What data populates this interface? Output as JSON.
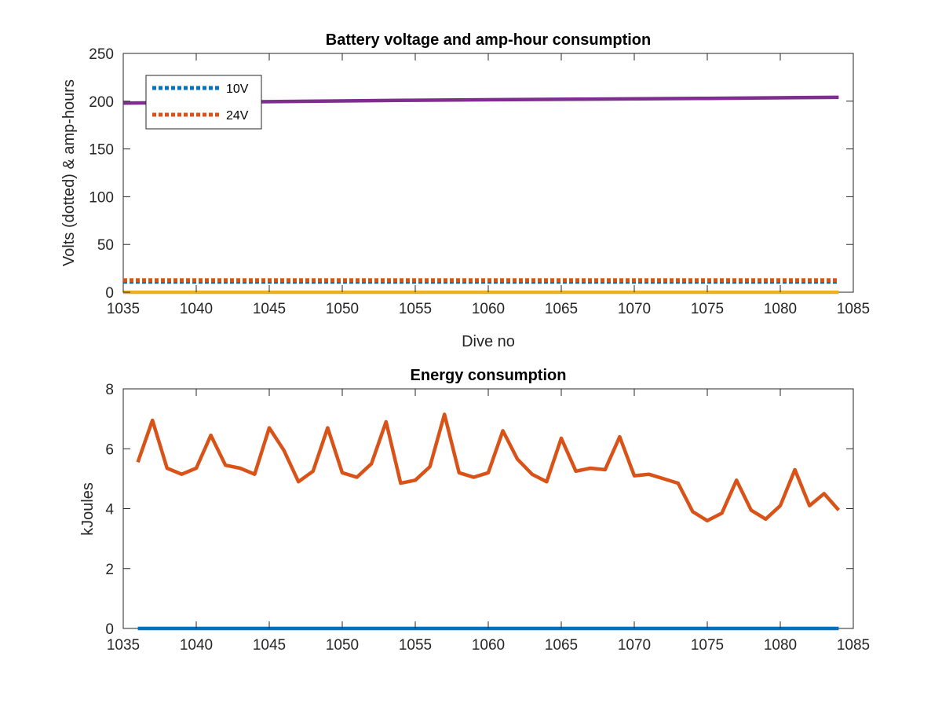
{
  "chart_data": [
    {
      "type": "line",
      "title": "Battery voltage and amp-hour consumption",
      "xlabel": "Dive no",
      "ylabel": "Volts (dotted) & amp-hours",
      "xlim": [
        1035,
        1085
      ],
      "ylim": [
        0,
        250
      ],
      "xticks": [
        1035,
        1040,
        1045,
        1050,
        1055,
        1060,
        1065,
        1070,
        1075,
        1080,
        1085
      ],
      "yticks": [
        0,
        50,
        100,
        150,
        200,
        250
      ],
      "grid": false,
      "legend": {
        "position": "top-left",
        "entries": [
          "10V",
          "24V"
        ]
      },
      "series": [
        {
          "name": "10V",
          "style": "dotted",
          "color": "#0072BD",
          "x": [
            1035,
            1084
          ],
          "values": [
            11,
            11
          ]
        },
        {
          "name": "24V",
          "style": "dotted",
          "color": "#D95319",
          "x": [
            1035,
            1084
          ],
          "values": [
            12.5,
            12.5
          ]
        },
        {
          "style": "solid",
          "color": "#EDB120",
          "x": [
            1035,
            1084
          ],
          "values": [
            0,
            0
          ]
        },
        {
          "style": "solid",
          "color": "#7E2F8E",
          "x": [
            1035,
            1045,
            1055,
            1065,
            1075,
            1084
          ],
          "values": [
            198,
            199.5,
            201,
            202,
            203,
            204
          ]
        }
      ]
    },
    {
      "type": "line",
      "title": "Energy consumption",
      "xlabel": "",
      "ylabel": "kJoules",
      "xlim": [
        1035,
        1085
      ],
      "ylim": [
        0,
        8
      ],
      "xticks": [
        1035,
        1040,
        1045,
        1050,
        1055,
        1060,
        1065,
        1070,
        1075,
        1080,
        1085
      ],
      "yticks": [
        0,
        2,
        4,
        6,
        8
      ],
      "grid": false,
      "series": [
        {
          "style": "solid",
          "color": "#0072BD",
          "x": [
            1036,
            1084
          ],
          "values": [
            0,
            0
          ]
        },
        {
          "style": "solid",
          "color": "#D95319",
          "x": [
            1036,
            1037,
            1038,
            1039,
            1040,
            1041,
            1042,
            1043,
            1044,
            1045,
            1046,
            1047,
            1048,
            1049,
            1050,
            1051,
            1052,
            1053,
            1054,
            1055,
            1056,
            1057,
            1058,
            1059,
            1060,
            1061,
            1062,
            1063,
            1064,
            1065,
            1066,
            1067,
            1068,
            1069,
            1070,
            1071,
            1072,
            1073,
            1074,
            1075,
            1076,
            1077,
            1078,
            1079,
            1080,
            1081,
            1082,
            1083,
            1084
          ],
          "values": [
            5.55,
            6.95,
            5.35,
            5.15,
            5.35,
            6.45,
            5.45,
            5.35,
            5.15,
            6.7,
            5.95,
            4.9,
            5.25,
            6.7,
            5.2,
            5.05,
            5.5,
            6.9,
            4.85,
            4.95,
            5.4,
            7.15,
            5.2,
            5.05,
            5.2,
            6.6,
            5.65,
            5.15,
            4.9,
            6.35,
            5.25,
            5.35,
            5.3,
            6.4,
            5.1,
            5.15,
            5.0,
            4.85,
            3.9,
            3.6,
            3.85,
            4.95,
            3.95,
            3.65,
            4.1,
            5.3,
            4.1,
            4.5,
            3.95
          ]
        }
      ]
    }
  ]
}
